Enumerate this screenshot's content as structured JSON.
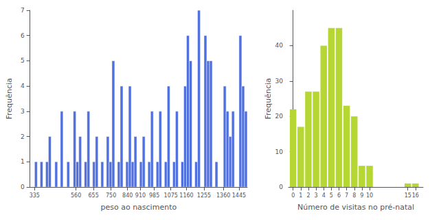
{
  "chart_data": [
    {
      "type": "histogram",
      "xlabel": "peso ao nascimento",
      "ylabel": "Frequência",
      "bins": [
        310,
        335,
        350,
        365,
        380,
        395,
        410,
        425,
        445,
        460,
        475,
        490,
        510,
        525,
        545,
        560,
        575,
        590,
        605,
        620,
        635,
        650,
        665,
        680,
        695,
        710,
        725,
        740,
        755,
        770,
        785,
        800,
        815,
        830,
        845,
        860,
        875,
        890,
        905,
        920,
        935,
        950,
        965,
        980,
        995,
        1010,
        1025,
        1040,
        1055,
        1070,
        1085,
        1100,
        1115,
        1130,
        1145,
        1160,
        1175,
        1190,
        1205,
        1220,
        1235,
        1255,
        1270,
        1285,
        1300,
        1315,
        1330,
        1360,
        1375,
        1390,
        1405,
        1420,
        1445,
        1460,
        1475,
        1490
      ],
      "values": [
        0,
        1,
        0,
        1,
        0,
        1,
        2,
        0,
        1,
        0,
        3,
        0,
        1,
        0,
        3,
        1,
        2,
        0,
        1,
        3,
        0,
        1,
        2,
        0,
        1,
        0,
        2,
        1,
        5,
        0,
        1,
        4,
        0,
        1,
        4,
        1,
        2,
        0,
        1,
        2,
        0,
        1,
        3,
        0,
        1,
        3,
        0,
        1,
        4,
        0,
        1,
        3,
        0,
        1,
        4,
        6,
        5,
        0,
        1,
        7,
        0,
        6,
        5,
        5,
        0,
        1,
        0,
        4,
        3,
        2,
        3,
        0,
        6,
        4,
        3
      ],
      "xlim": [
        310,
        1490
      ],
      "xticks": [
        335,
        560,
        655,
        750,
        840,
        910,
        985,
        1075,
        1160,
        1255,
        1360,
        1445
      ],
      "ylim": [
        0,
        7
      ],
      "yticks": [
        0,
        1,
        2,
        3,
        4,
        5,
        6,
        7
      ],
      "grid": false
    },
    {
      "type": "bar",
      "xlabel": "Número de visitas no pré-natal",
      "ylabel": "Frequência",
      "x": [
        0,
        1,
        2,
        3,
        4,
        5,
        6,
        7,
        8,
        9,
        10,
        15,
        16
      ],
      "values": [
        22,
        17,
        27,
        27,
        40,
        45,
        45,
        23,
        20,
        6,
        6,
        1,
        1
      ],
      "xlim": [
        -0.6,
        17
      ],
      "xticks": [
        0,
        1,
        2,
        3,
        4,
        5,
        6,
        7,
        8,
        9,
        10,
        15,
        16
      ],
      "ylim": [
        0,
        50
      ],
      "yticks": [
        0,
        10,
        20,
        30,
        40
      ],
      "grid": false
    }
  ]
}
